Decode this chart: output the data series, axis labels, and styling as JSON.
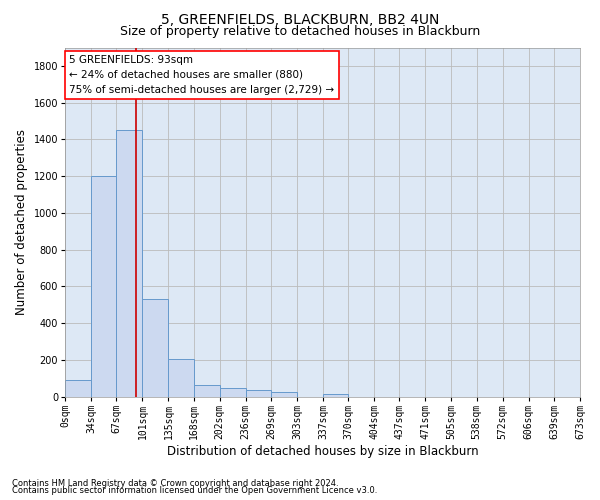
{
  "title": "5, GREENFIELDS, BLACKBURN, BB2 4UN",
  "subtitle": "Size of property relative to detached houses in Blackburn",
  "xlabel": "Distribution of detached houses by size in Blackburn",
  "ylabel": "Number of detached properties",
  "bar_color": "#ccd9f0",
  "bar_edgecolor": "#6699cc",
  "background_color": "#ffffff",
  "plot_bg_color": "#dde8f5",
  "grid_color": "#bbbbbb",
  "bins": [
    0,
    34,
    67,
    101,
    135,
    168,
    202,
    236,
    269,
    303,
    337,
    370,
    404,
    437,
    471,
    505,
    538,
    572,
    606,
    639,
    673
  ],
  "bin_labels": [
    "0sqm",
    "34sqm",
    "67sqm",
    "101sqm",
    "135sqm",
    "168sqm",
    "202sqm",
    "236sqm",
    "269sqm",
    "303sqm",
    "337sqm",
    "370sqm",
    "404sqm",
    "437sqm",
    "471sqm",
    "505sqm",
    "538sqm",
    "572sqm",
    "606sqm",
    "639sqm",
    "673sqm"
  ],
  "values": [
    90,
    1200,
    1450,
    530,
    205,
    65,
    45,
    35,
    28,
    0,
    15,
    0,
    0,
    0,
    0,
    0,
    0,
    0,
    0,
    0
  ],
  "ylim": [
    0,
    1900
  ],
  "yticks": [
    0,
    200,
    400,
    600,
    800,
    1000,
    1200,
    1400,
    1600,
    1800
  ],
  "vline_x": 93,
  "vline_color": "#cc0000",
  "annotation_line1": "5 GREENFIELDS: 93sqm",
  "annotation_line2": "← 24% of detached houses are smaller (880)",
  "annotation_line3": "75% of semi-detached houses are larger (2,729) →",
  "footer_line1": "Contains HM Land Registry data © Crown copyright and database right 2024.",
  "footer_line2": "Contains public sector information licensed under the Open Government Licence v3.0.",
  "title_fontsize": 10,
  "subtitle_fontsize": 9,
  "axis_label_fontsize": 8.5,
  "tick_fontsize": 7,
  "annotation_fontsize": 7.5,
  "footer_fontsize": 6
}
